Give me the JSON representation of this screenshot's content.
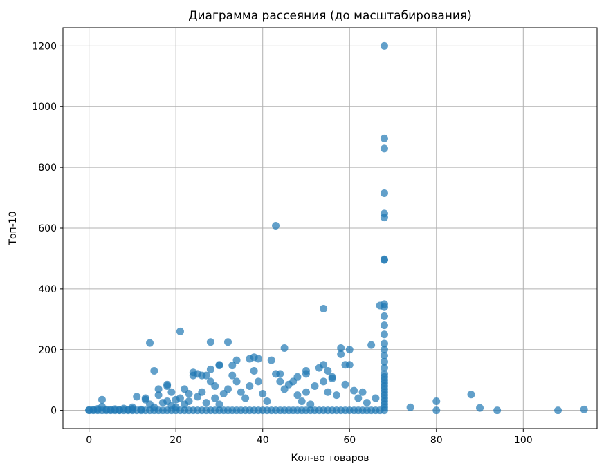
{
  "chart_data": {
    "type": "scatter",
    "title": "Диаграмма рассеяния (до масштабирования)",
    "xlabel": "Кол-во товаров",
    "ylabel": "Топ-10",
    "xlim": [
      -6,
      117
    ],
    "ylim": [
      -60,
      1260
    ],
    "xticks": [
      0,
      20,
      40,
      60,
      80,
      100
    ],
    "yticks": [
      0,
      200,
      400,
      600,
      800,
      1000,
      1200
    ],
    "grid": true,
    "marker_color": "#1f77b4",
    "marker_alpha": 0.7,
    "points": [
      [
        0,
        0
      ],
      [
        0,
        1
      ],
      [
        1,
        0
      ],
      [
        1,
        2
      ],
      [
        2,
        0
      ],
      [
        2,
        5
      ],
      [
        3,
        0
      ],
      [
        3,
        12
      ],
      [
        3,
        35
      ],
      [
        4,
        0
      ],
      [
        4,
        3
      ],
      [
        5,
        0
      ],
      [
        5,
        2
      ],
      [
        6,
        0
      ],
      [
        6,
        4
      ],
      [
        7,
        0
      ],
      [
        7,
        1
      ],
      [
        8,
        0
      ],
      [
        8,
        6
      ],
      [
        9,
        0
      ],
      [
        9,
        2
      ],
      [
        10,
        0
      ],
      [
        10,
        5
      ],
      [
        10,
        10
      ],
      [
        11,
        0
      ],
      [
        11,
        45
      ],
      [
        12,
        0
      ],
      [
        12,
        3
      ],
      [
        13,
        0
      ],
      [
        13,
        35
      ],
      [
        13,
        40
      ],
      [
        14,
        0
      ],
      [
        14,
        222
      ],
      [
        14,
        20
      ],
      [
        15,
        130
      ],
      [
        15,
        0
      ],
      [
        15,
        10
      ],
      [
        16,
        0
      ],
      [
        16,
        50
      ],
      [
        16,
        70
      ],
      [
        17,
        0
      ],
      [
        17,
        25
      ],
      [
        18,
        0
      ],
      [
        18,
        85
      ],
      [
        18,
        80
      ],
      [
        18,
        30
      ],
      [
        19,
        60
      ],
      [
        19,
        0
      ],
      [
        19,
        15
      ],
      [
        20,
        0
      ],
      [
        20,
        35
      ],
      [
        20,
        10
      ],
      [
        21,
        260
      ],
      [
        21,
        0
      ],
      [
        21,
        40
      ],
      [
        22,
        0
      ],
      [
        22,
        70
      ],
      [
        22,
        20
      ],
      [
        23,
        0
      ],
      [
        23,
        55
      ],
      [
        23,
        30
      ],
      [
        24,
        125
      ],
      [
        24,
        115
      ],
      [
        24,
        0
      ],
      [
        25,
        120
      ],
      [
        25,
        0
      ],
      [
        25,
        45
      ],
      [
        26,
        115
      ],
      [
        26,
        0
      ],
      [
        26,
        60
      ],
      [
        27,
        0
      ],
      [
        27,
        115
      ],
      [
        27,
        25
      ],
      [
        28,
        225
      ],
      [
        28,
        135
      ],
      [
        28,
        95
      ],
      [
        28,
        0
      ],
      [
        29,
        0
      ],
      [
        29,
        80
      ],
      [
        29,
        40
      ],
      [
        30,
        150
      ],
      [
        30,
        148
      ],
      [
        30,
        0
      ],
      [
        30,
        20
      ],
      [
        31,
        0
      ],
      [
        31,
        55
      ],
      [
        32,
        225
      ],
      [
        32,
        0
      ],
      [
        32,
        70
      ],
      [
        33,
        0
      ],
      [
        33,
        148
      ],
      [
        33,
        115
      ],
      [
        34,
        165
      ],
      [
        34,
        95
      ],
      [
        34,
        0
      ],
      [
        35,
        0
      ],
      [
        35,
        60
      ],
      [
        36,
        0
      ],
      [
        36,
        40
      ],
      [
        37,
        0
      ],
      [
        37,
        80
      ],
      [
        37,
        170
      ],
      [
        38,
        175
      ],
      [
        38,
        130
      ],
      [
        38,
        0
      ],
      [
        39,
        0
      ],
      [
        39,
        170
      ],
      [
        39,
        95
      ],
      [
        40,
        0
      ],
      [
        40,
        55
      ],
      [
        41,
        0
      ],
      [
        41,
        30
      ],
      [
        42,
        165
      ],
      [
        42,
        0
      ],
      [
        43,
        608
      ],
      [
        43,
        120
      ],
      [
        43,
        0
      ],
      [
        44,
        95
      ],
      [
        44,
        0
      ],
      [
        44,
        120
      ],
      [
        45,
        205
      ],
      [
        45,
        0
      ],
      [
        45,
        70
      ],
      [
        46,
        0
      ],
      [
        46,
        85
      ],
      [
        47,
        0
      ],
      [
        47,
        95
      ],
      [
        48,
        110
      ],
      [
        48,
        0
      ],
      [
        48,
        50
      ],
      [
        49,
        0
      ],
      [
        49,
        30
      ],
      [
        50,
        130
      ],
      [
        50,
        120
      ],
      [
        50,
        0
      ],
      [
        50,
        60
      ],
      [
        51,
        0
      ],
      [
        51,
        20
      ],
      [
        52,
        0
      ],
      [
        52,
        80
      ],
      [
        53,
        0
      ],
      [
        53,
        140
      ],
      [
        54,
        335
      ],
      [
        54,
        150
      ],
      [
        54,
        0
      ],
      [
        54,
        95
      ],
      [
        55,
        0
      ],
      [
        55,
        130
      ],
      [
        55,
        60
      ],
      [
        56,
        0
      ],
      [
        56,
        110
      ],
      [
        56,
        105
      ],
      [
        57,
        0
      ],
      [
        57,
        50
      ],
      [
        58,
        205
      ],
      [
        58,
        185
      ],
      [
        58,
        0
      ],
      [
        59,
        150
      ],
      [
        59,
        85
      ],
      [
        59,
        0
      ],
      [
        60,
        200
      ],
      [
        60,
        150
      ],
      [
        60,
        0
      ],
      [
        61,
        0
      ],
      [
        61,
        65
      ],
      [
        62,
        0
      ],
      [
        62,
        40
      ],
      [
        63,
        0
      ],
      [
        63,
        60
      ],
      [
        64,
        0
      ],
      [
        64,
        25
      ],
      [
        65,
        0
      ],
      [
        65,
        215
      ],
      [
        66,
        0
      ],
      [
        66,
        40
      ],
      [
        67,
        0
      ],
      [
        67,
        345
      ],
      [
        68,
        0
      ],
      [
        68,
        10
      ],
      [
        68,
        20
      ],
      [
        68,
        30
      ],
      [
        68,
        40
      ],
      [
        68,
        50
      ],
      [
        68,
        60
      ],
      [
        68,
        70
      ],
      [
        68,
        80
      ],
      [
        68,
        90
      ],
      [
        68,
        100
      ],
      [
        68,
        110
      ],
      [
        68,
        120
      ],
      [
        68,
        140
      ],
      [
        68,
        160
      ],
      [
        68,
        180
      ],
      [
        68,
        200
      ],
      [
        68,
        220
      ],
      [
        68,
        250
      ],
      [
        68,
        280
      ],
      [
        68,
        310
      ],
      [
        68,
        340
      ],
      [
        68,
        350
      ],
      [
        68,
        495
      ],
      [
        68,
        497
      ],
      [
        68,
        635
      ],
      [
        68,
        648
      ],
      [
        68,
        715
      ],
      [
        68,
        862
      ],
      [
        68,
        895
      ],
      [
        68,
        1200
      ],
      [
        74,
        10
      ],
      [
        80,
        30
      ],
      [
        80,
        0
      ],
      [
        88,
        52
      ],
      [
        90,
        8
      ],
      [
        94,
        0
      ],
      [
        108,
        0
      ],
      [
        114,
        3
      ]
    ]
  }
}
